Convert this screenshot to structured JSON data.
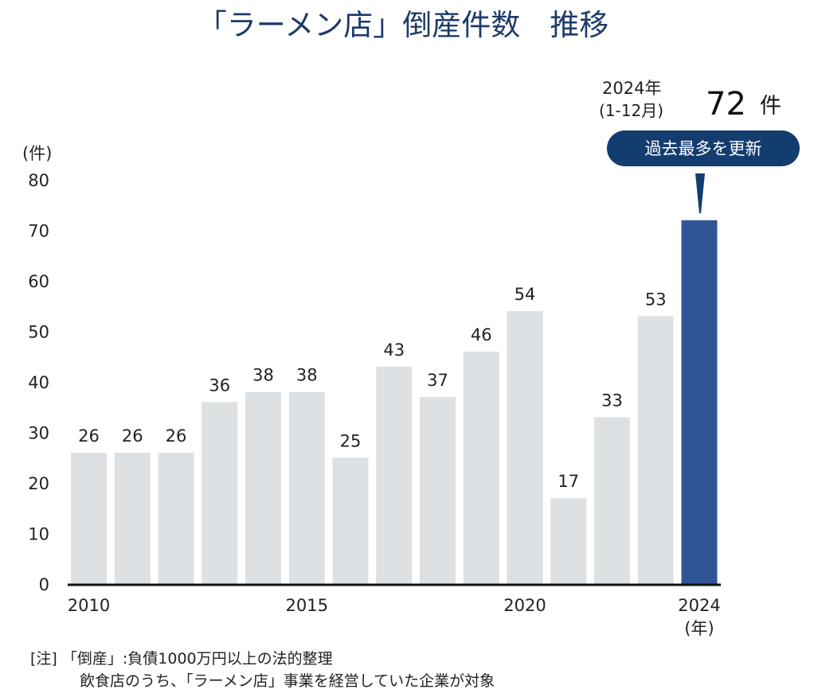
{
  "chart_data": {
    "type": "bar",
    "title": "「ラーメン店」倒産件数　推移",
    "ylabel": "(件)",
    "xlabel": "(年)",
    "ylim": [
      0,
      80
    ],
    "yticks": [
      "0",
      "10",
      "20",
      "30",
      "40",
      "50",
      "60",
      "70",
      "80"
    ],
    "xtick_labels": [
      "2010",
      "2015",
      "2020",
      "2024"
    ],
    "categories": [
      "2010",
      "2011",
      "2012",
      "2013",
      "2014",
      "2015",
      "2016",
      "2017",
      "2018",
      "2019",
      "2020",
      "2021",
      "2022",
      "2023",
      "2024"
    ],
    "values": [
      26,
      26,
      26,
      36,
      38,
      38,
      25,
      43,
      37,
      46,
      54,
      17,
      33,
      53,
      72
    ],
    "data_labels": [
      "26",
      "26",
      "26",
      "36",
      "38",
      "38",
      "25",
      "43",
      "37",
      "46",
      "54",
      "17",
      "33",
      "53",
      ""
    ],
    "grid": false,
    "colors": {
      "bar": "#dde1e3",
      "highlight": "#2f5597",
      "callout": "#133c6f",
      "title": "#1e3a68"
    },
    "callout": {
      "year": "2024年",
      "period": "(1-12月)",
      "value": "72",
      "unit": "件",
      "badge": "過去最多を更新"
    }
  },
  "notes": {
    "line1": "[注] 「倒産」:負債1000万円以上の法的整理",
    "line2": "飲食店のうち、「ラーメン店」事業を経営していた企業が対象"
  }
}
